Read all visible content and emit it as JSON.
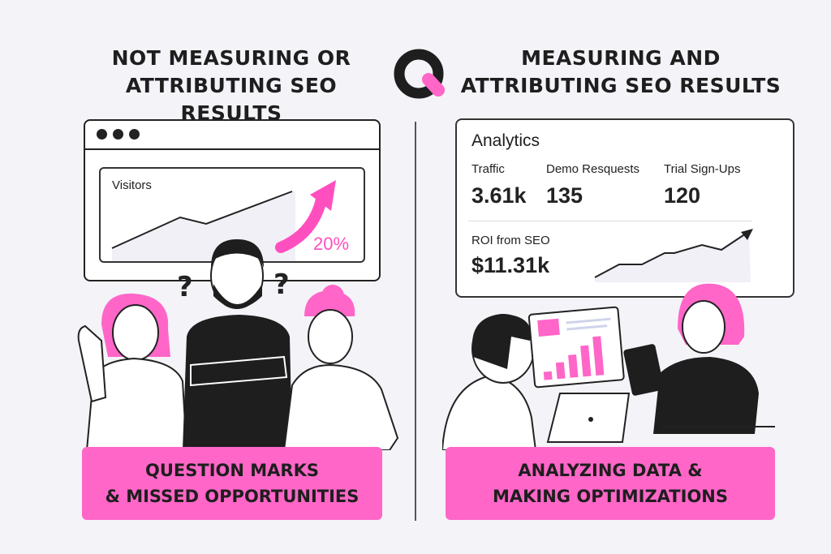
{
  "left": {
    "title_line1": "NOT MEASURING OR",
    "title_line2": "ATTRIBUTING SEO RESULTS",
    "chart_label": "Visitors",
    "growth": "20%",
    "caption_line1": "QUESTION MARKS",
    "caption_line2": "& MISSED OPPORTUNITIES"
  },
  "right": {
    "title_line1": "MEASURING AND",
    "title_line2": "ATTRIBUTING SEO RESULTS",
    "card_title": "Analytics",
    "metrics": [
      {
        "label": "Traffic",
        "value": "3.61k"
      },
      {
        "label": "Demo Resquests",
        "value": "135"
      },
      {
        "label": "Trial Sign-Ups",
        "value": "120"
      }
    ],
    "roi_label": "ROI from SEO",
    "roi_value": "$11.31k",
    "caption_line1": "ANALYZING DATA &",
    "caption_line2": "MAKING OPTIMIZATIONS"
  },
  "logo": {
    "icon": "q-logo-icon"
  },
  "colors": {
    "accent": "#ff66c8",
    "ink": "#1e1e1e",
    "background": "#f4f3f8"
  }
}
